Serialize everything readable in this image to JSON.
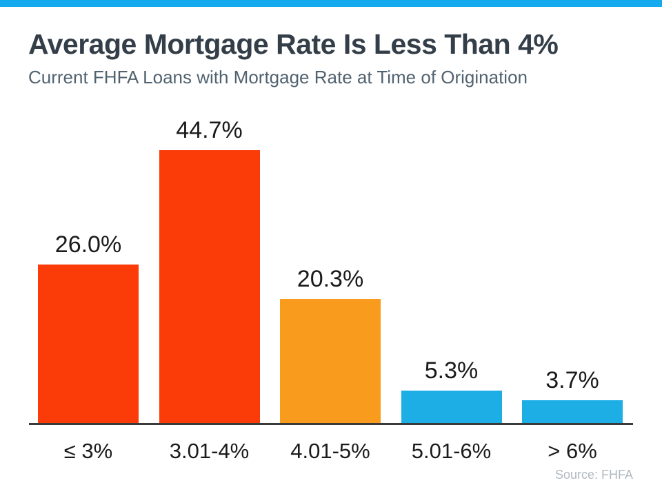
{
  "header": {
    "title": "Average Mortgage Rate Is Less Than 4%",
    "subtitle": "Current FHFA Loans with Mortgage Rate at Time of Origination"
  },
  "source": {
    "label": "Source: FHFA"
  },
  "colors": {
    "top_accent_bar": "#14aaed",
    "title_text": "#333e48",
    "subtitle_text": "#51626f",
    "axis_line": "#3a3a3a",
    "label_text": "#1a1a1a",
    "source_text": "#b0b9c0",
    "red_bar": "#fb3b08",
    "orange_bar": "#f99b1c",
    "blue_bar": "#1daee6"
  },
  "chart_data": {
    "type": "bar",
    "title": "Average Mortgage Rate Is Less Than 4%",
    "subtitle": "Current FHFA Loans with Mortgage Rate at Time of Origination",
    "categories": [
      "≤ 3%",
      "3.01-4%",
      "4.01-5%",
      "5.01-6%",
      "> 6%"
    ],
    "values": [
      26.0,
      44.7,
      20.3,
      5.3,
      3.7
    ],
    "labels": [
      "26.0%",
      "44.7%",
      "20.3%",
      "5.3%",
      "3.7%"
    ],
    "bar_colors": [
      "#fb3b08",
      "#fb3b08",
      "#f99b1c",
      "#1daee6",
      "#1daee6"
    ],
    "xlabel": "",
    "ylabel": "",
    "ylim": [
      0,
      47
    ],
    "grid": false,
    "legend": false,
    "data_labels_position": "above-bars",
    "source": "Source: FHFA"
  }
}
